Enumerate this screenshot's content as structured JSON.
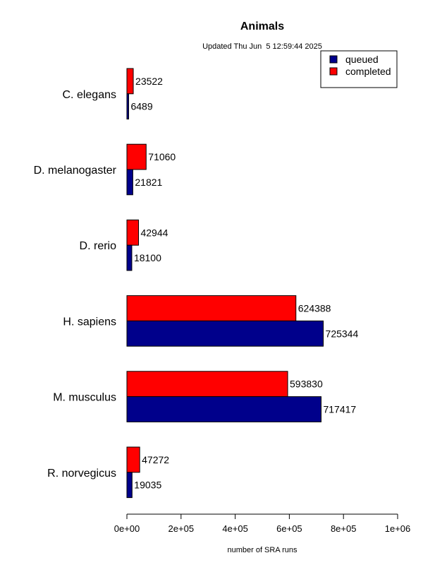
{
  "chart_data": {
    "type": "bar",
    "orientation": "horizontal",
    "title": "Animals",
    "subtitle": "Updated Thu Jun  5 12:59:44 2025",
    "xlabel": "number of SRA runs",
    "ylabel": "",
    "xlim": [
      0,
      1000000
    ],
    "xticks": [
      0,
      200000,
      400000,
      600000,
      800000,
      1000000
    ],
    "xtick_labels": [
      "0e+00",
      "2e+05",
      "4e+05",
      "6e+05",
      "8e+05",
      "1e+06"
    ],
    "categories": [
      "C. elegans",
      "D. melanogaster",
      "D. rerio",
      "H. sapiens",
      "M. musculus",
      "R. norvegicus"
    ],
    "series": [
      {
        "name": "completed",
        "color": "#ff0000",
        "values": [
          23522,
          71060,
          42944,
          624388,
          593830,
          47272
        ]
      },
      {
        "name": "queued",
        "color": "#00008b",
        "values": [
          6489,
          21821,
          18100,
          725344,
          717417,
          19035
        ]
      }
    ],
    "legend": {
      "position": "top-right",
      "entries": [
        {
          "label": "queued",
          "color": "#00008b"
        },
        {
          "label": "completed",
          "color": "#ff0000"
        }
      ]
    },
    "grid": false
  }
}
